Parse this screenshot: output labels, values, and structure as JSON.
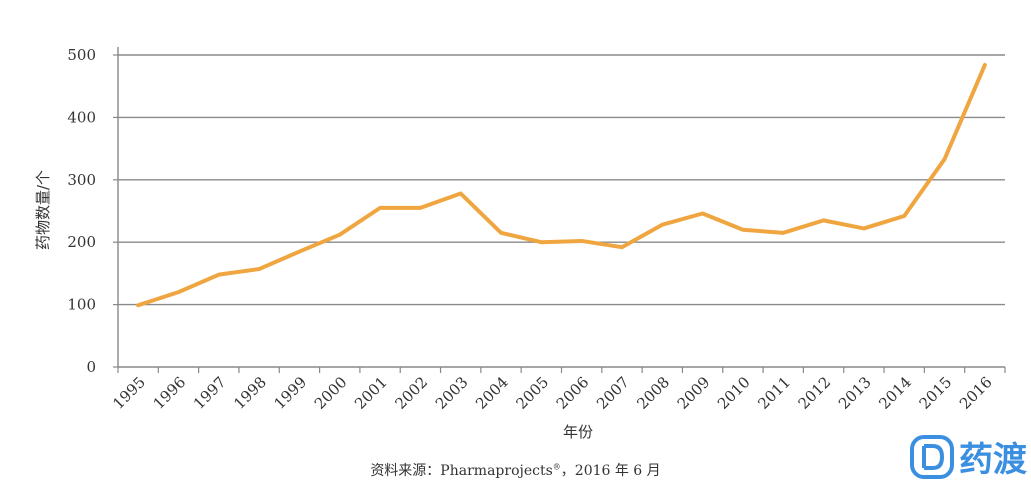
{
  "chart_data": {
    "type": "line",
    "title": "",
    "xlabel": "年份",
    "ylabel": "药物数量/个",
    "ylim": [
      0,
      500
    ],
    "yticks": [
      0,
      100,
      200,
      300,
      400,
      500
    ],
    "grid": true,
    "categories": [
      "1995",
      "1996",
      "1997",
      "1998",
      "1999",
      "2000",
      "2001",
      "2002",
      "2003",
      "2004",
      "2005",
      "2006",
      "2007",
      "2008",
      "2009",
      "2010",
      "2011",
      "2012",
      "2013",
      "2014",
      "2015",
      "2016"
    ],
    "series": [
      {
        "color": "#f0a640",
        "values": [
          99,
          120,
          148,
          157,
          185,
          212,
          255,
          255,
          278,
          215,
          200,
          202,
          192,
          228,
          246,
          220,
          215,
          235,
          222,
          242,
          333,
          484
        ]
      }
    ]
  },
  "caption": {
    "prefix": "资料来源：Pharmaprojects",
    "sup": "®",
    "suffix": "，2016 年 6 月"
  },
  "watermark": {
    "text": "药渡",
    "icon": "yaodu-logo-icon",
    "color": "#3b8fe0"
  }
}
